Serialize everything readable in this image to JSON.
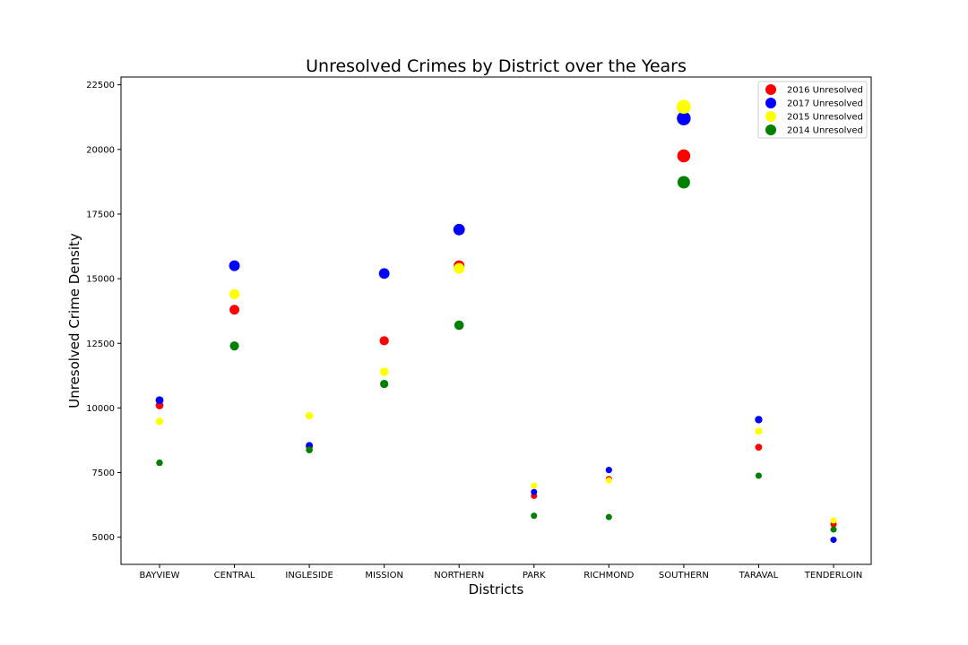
{
  "chart_data": {
    "type": "scatter",
    "title": "Unresolved Crimes by District over the Years",
    "xlabel": "Districts",
    "ylabel": "Unresolved Crime Density",
    "categories": [
      "BAYVIEW",
      "CENTRAL",
      "INGLESIDE",
      "MISSION",
      "NORTHERN",
      "PARK",
      "RICHMOND",
      "SOUTHERN",
      "TARAVAL",
      "TENDERLOIN"
    ],
    "ylim": [
      3950,
      22800
    ],
    "yticks": [
      5000,
      7500,
      10000,
      12500,
      15000,
      17500,
      20000,
      22500
    ],
    "ytick_labels": [
      "5000",
      "7500",
      "10000",
      "12500",
      "15000",
      "17500",
      "20000",
      "22500"
    ],
    "grid": false,
    "legend_position": "top-right",
    "series": [
      {
        "name": "2016 Unresolved",
        "color": "#ff0000",
        "values": [
          10100,
          13800,
          8500,
          12600,
          15500,
          6600,
          7250,
          19750,
          8480,
          5500
        ]
      },
      {
        "name": "2017 Unresolved",
        "color": "#0000ff",
        "values": [
          10300,
          15500,
          8550,
          15200,
          16900,
          6750,
          7600,
          21200,
          9550,
          4900
        ]
      },
      {
        "name": "2015 Unresolved",
        "color": "#ffff00",
        "values": [
          9480,
          14400,
          9700,
          11400,
          15400,
          7000,
          7200,
          21650,
          9100,
          5650
        ]
      },
      {
        "name": "2014 Unresolved",
        "color": "#008000",
        "values": [
          7880,
          12400,
          8380,
          10930,
          13200,
          5830,
          5780,
          18730,
          7380,
          5300
        ]
      }
    ]
  }
}
